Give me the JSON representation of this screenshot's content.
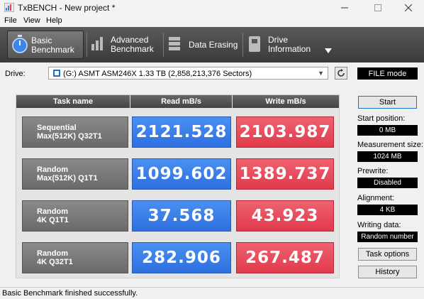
{
  "window": {
    "title": "TxBENCH - New project *"
  },
  "menu": {
    "file": "File",
    "view": "View",
    "help": "Help"
  },
  "toolbar": {
    "basic": {
      "line1": "Basic",
      "line2": "Benchmark"
    },
    "advanced": {
      "line1": "Advanced",
      "line2": "Benchmark"
    },
    "erasing": {
      "line1": "Data Erasing"
    },
    "info": {
      "line1": "Drive",
      "line2": "Information"
    }
  },
  "drive": {
    "label": "Drive:",
    "selected": "(G:) ASMT ASM246X  1.33 TB (2,858,213,376 Sectors)",
    "mode": "FILE mode"
  },
  "table": {
    "headers": {
      "task": "Task name",
      "read": "Read mB/s",
      "write": "Write mB/s"
    },
    "rows": [
      {
        "line1": "Sequential",
        "line2": "Max(512K) Q32T1",
        "read": "2121.528",
        "write": "2103.987"
      },
      {
        "line1": "Random",
        "line2": "Max(512K) Q1T1",
        "read": "1099.602",
        "write": "1389.737"
      },
      {
        "line1": "Random",
        "line2": "4K Q1T1",
        "read": "37.568",
        "write": "43.923"
      },
      {
        "line1": "Random",
        "line2": "4K Q32T1",
        "read": "282.906",
        "write": "267.487"
      }
    ]
  },
  "panel": {
    "start": "Start",
    "start_position_label": "Start position:",
    "start_position": "0 MB",
    "measurement_label": "Measurement size:",
    "measurement": "1024 MB",
    "prewrite_label": "Prewrite:",
    "prewrite": "Disabled",
    "alignment_label": "Alignment:",
    "alignment": "4 KB",
    "writing_label": "Writing data:",
    "writing": "Random number",
    "task_options": "Task options",
    "history": "History"
  },
  "status": {
    "text": "Basic Benchmark finished successfully."
  },
  "colors": {
    "read": "#2d6fe0",
    "write": "#e03a4c",
    "toolbar": "#444444"
  }
}
